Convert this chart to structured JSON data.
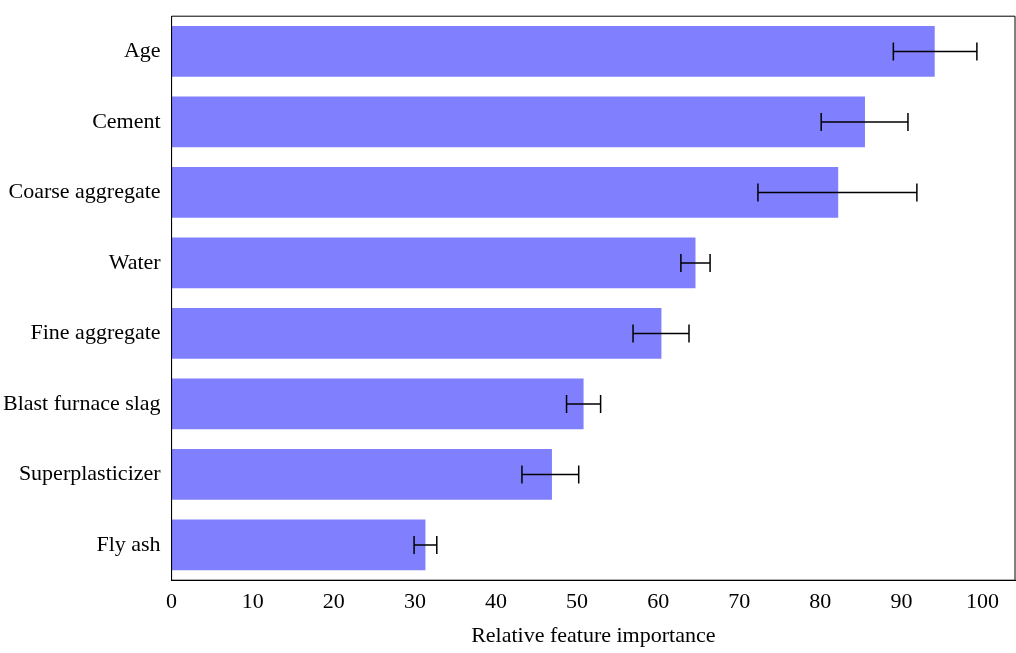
{
  "chart_data": {
    "type": "bar",
    "orientation": "horizontal",
    "xlabel": "Relative feature importance",
    "categories": [
      "Age",
      "Cement",
      "Coarse aggregate",
      "Water",
      "Fine aggregate",
      "Blast furnace slag",
      "Superplasticizer",
      "Fly ash"
    ],
    "values": [
      94.1,
      85.5,
      82.2,
      64.6,
      60.4,
      50.8,
      46.9,
      31.3
    ],
    "errors": [
      [
        89.0,
        99.3
      ],
      [
        80.1,
        90.8
      ],
      [
        72.3,
        91.9
      ],
      [
        62.8,
        66.4
      ],
      [
        56.9,
        63.8
      ],
      [
        48.7,
        52.9
      ],
      [
        43.2,
        50.2
      ],
      [
        29.9,
        32.7
      ]
    ],
    "color": "#8080ff",
    "xlim": [
      0,
      104
    ],
    "xticks": [
      0,
      10,
      20,
      30,
      40,
      50,
      60,
      70,
      80,
      90,
      100
    ],
    "grid": false,
    "legend": false
  }
}
